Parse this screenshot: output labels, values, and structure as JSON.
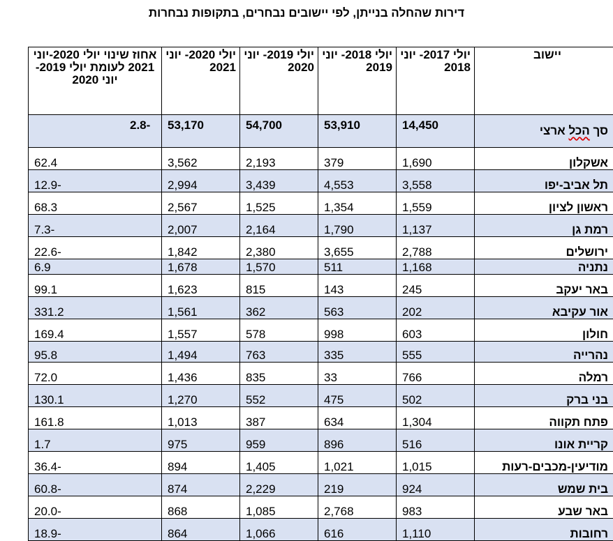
{
  "title": "דירות שהחלה בנייתן, לפי יישובים נבחרים, בתקופות נבחרות",
  "headers": [
    "יישוב",
    "יולי 2017- יוני 2018",
    "יולי 2018- יוני 2019",
    "יולי 2019- יוני 2020",
    "יולי 2020- יוני 2021",
    "אחוז שינוי יולי 2020-יוני 2021 לעומת יולי 2019-יוני 2020"
  ],
  "total": {
    "name_prefix": "סך ",
    "name_mid": "הכל",
    "name_suffix": " ארצי",
    "values": [
      "14,450",
      "53,910",
      "54,700",
      "53,170",
      "-2.8"
    ]
  },
  "rows": [
    {
      "name": "אשקלון",
      "values": [
        "1,690",
        "379",
        "2,193",
        "3,562",
        "62.4"
      ]
    },
    {
      "name": "תל אביב-יפו",
      "values": [
        "3,558",
        "4,553",
        "3,439",
        "2,994",
        "-12.9"
      ]
    },
    {
      "name": "ראשון לציון",
      "values": [
        "1,559",
        "1,354",
        "1,525",
        "2,567",
        "68.3"
      ]
    },
    {
      "name": "רמת גן",
      "values": [
        "1,137",
        "1,790",
        "2,164",
        "2,007",
        "-7.3"
      ]
    },
    {
      "name": "ירושלים",
      "values": [
        "2,788",
        "3,655",
        "2,380",
        "1,842",
        "-22.6"
      ]
    },
    {
      "name": "נתניה",
      "values": [
        "1,168",
        "511",
        "1,570",
        "1,678",
        "6.9"
      ]
    },
    {
      "name": "באר יעקב",
      "values": [
        "245",
        "143",
        "815",
        "1,623",
        "99.1"
      ]
    },
    {
      "name": "אור עקיבא",
      "values": [
        "202",
        "563",
        "362",
        "1,561",
        "331.2"
      ]
    },
    {
      "name": "חולון",
      "values": [
        "603",
        "998",
        "578",
        "1,557",
        "169.4"
      ]
    },
    {
      "name": "נהרייה",
      "values": [
        "555",
        "335",
        "763",
        "1,494",
        "95.8"
      ]
    },
    {
      "name": "רמלה",
      "values": [
        "766",
        "33",
        "835",
        "1,436",
        "72.0"
      ]
    },
    {
      "name": "בני ברק",
      "values": [
        "502",
        "475",
        "552",
        "1,270",
        "130.1"
      ]
    },
    {
      "name": "פתח תקווה",
      "values": [
        "1,304",
        "634",
        "387",
        "1,013",
        "161.8"
      ]
    },
    {
      "name": "קריית אונו",
      "values": [
        "516",
        "896",
        "959",
        "975",
        "1.7"
      ]
    },
    {
      "name": "מודיעין-מכבים-רעות",
      "values": [
        "1,015",
        "1,021",
        "1,405",
        "894",
        "-36.4"
      ]
    },
    {
      "name": "בית שמש",
      "values": [
        "924",
        "219",
        "2,229",
        "874",
        "-60.8"
      ]
    },
    {
      "name": "באר שבע",
      "values": [
        "983",
        "2,768",
        "1,085",
        "868",
        "-20.0"
      ]
    },
    {
      "name": "רחובות",
      "values": [
        "1,110",
        "616",
        "1,066",
        "864",
        "-18.9"
      ]
    }
  ]
}
